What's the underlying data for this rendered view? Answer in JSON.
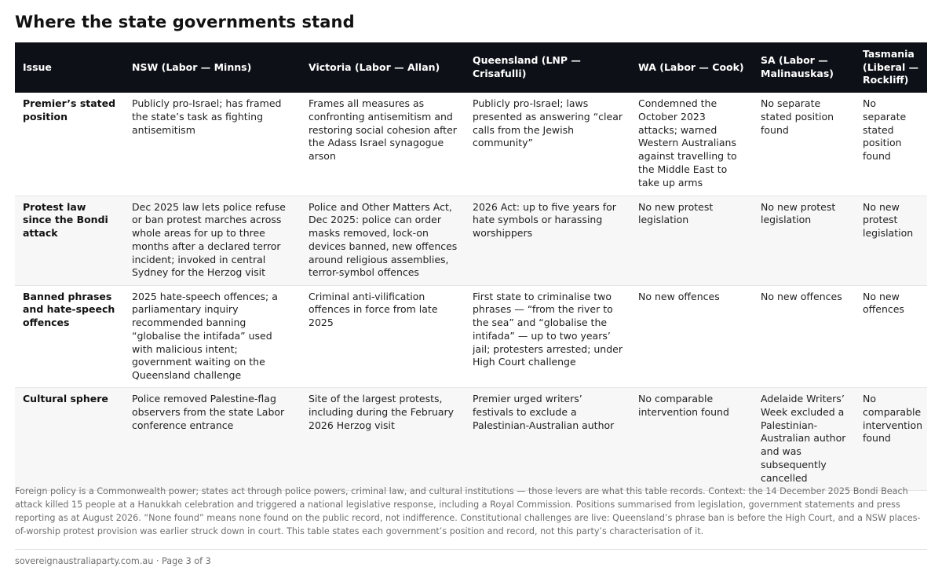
{
  "title": "Where the state governments stand",
  "table": {
    "headers": [
      "Issue",
      "NSW (Labor — Minns)",
      "Victoria (Labor — Allan)",
      "Queensland (LNP — Crisafulli)",
      "WA (Labor — Cook)",
      "SA (Labor — Malinauskas)",
      "Tasmania (Liberal — Rockliff)"
    ],
    "rows": [
      [
        "Premier’s stated position",
        "Publicly pro-Israel; has framed the state’s task as fighting antisemitism",
        "Frames all measures as confronting antisemitism and restoring social cohesion after the Adass Israel synagogue arson",
        "Publicly pro-Israel; laws presented as answering “clear calls from the Jewish community”",
        "Condemned the October 2023 attacks; warned Western Australians against travelling to the Middle East to take up arms",
        "No separate stated position found",
        "No separate stated position found"
      ],
      [
        "Protest law since the Bondi attack",
        "Dec 2025 law lets police refuse or ban protest marches across whole areas for up to three months after a declared terror incident; invoked in central Sydney for the Herzog visit",
        "Police and Other Matters Act, Dec 2025: police can order masks removed, lock-on devices banned, new offences around religious assemblies, terror-symbol offences",
        "2026 Act: up to five years for hate symbols or harassing worshippers",
        "No new protest legislation",
        "No new protest legislation",
        "No new protest legislation"
      ],
      [
        "Banned phrases and hate-speech offences",
        "2025 hate-speech offences; a parliamentary inquiry recommended banning “globalise the intifada” used with malicious intent; government waiting on the Queensland challenge",
        "Criminal anti-vilification offences in force from late 2025",
        "First state to criminalise two phrases — “from the river to the sea” and “globalise the intifada” — up to two years’ jail; protesters arrested; under High Court challenge",
        "No new offences",
        "No new offences",
        "No new offences"
      ],
      [
        "Cultural sphere",
        "Police removed Palestine-flag observers from the state Labor conference entrance",
        "Site of the largest protests, including during the February 2026 Herzog visit",
        "Premier urged writers’ festivals to exclude a Palestinian-Australian author",
        "No comparable intervention found",
        "Adelaide Writers’ Week excluded a Palestinian-Australian author and was subsequently cancelled",
        "No comparable intervention found"
      ]
    ]
  },
  "footnote": "Foreign policy is a Commonwealth power; states act through police powers, criminal law, and cultural institutions — those levers are what this table records. Context: the 14 December 2025 Bondi Beach attack killed 15 people at a Hanukkah celebration and triggered a national legislative response, including a Royal Commission. Positions summarised from legislation, government statements and press reporting as at August 2026. “None found” means none found on the public record, not indifference. Constitutional challenges are live: Queensland’s phrase ban is before the High Court, and a NSW places-of-worship protest provision was earlier struck down in court. This table states each government’s position and record, not this party’s characterisation of it.",
  "footer": "sovereignaustraliaparty.com.au · Page 3 of 3"
}
